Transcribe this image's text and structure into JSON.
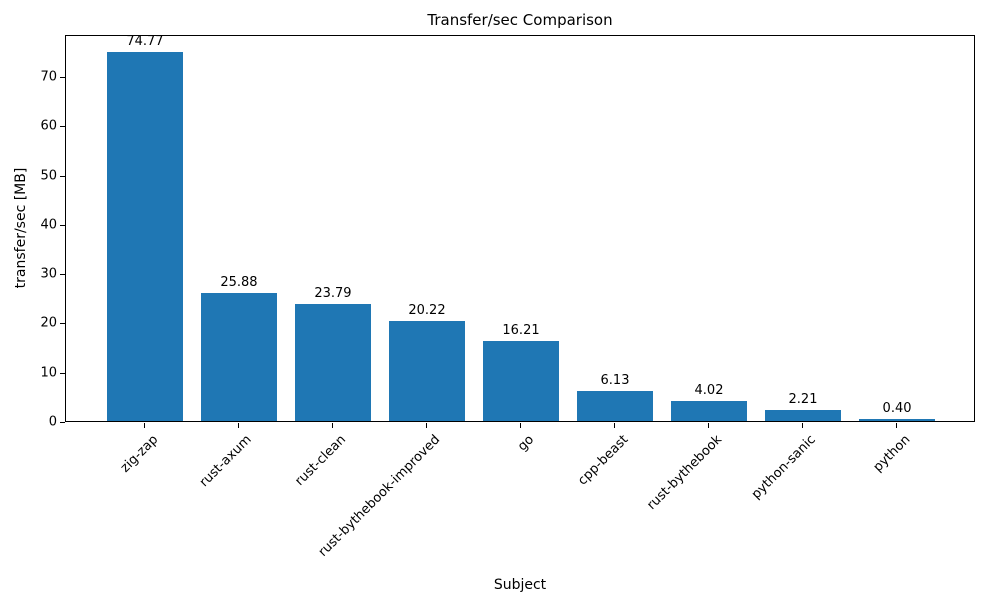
{
  "chart_data": {
    "type": "bar",
    "title": "Transfer/sec Comparison",
    "xlabel": "Subject",
    "ylabel": "transfer/sec [MB]",
    "categories": [
      "zig-zap",
      "rust-axum",
      "rust-clean",
      "rust-bythebook-improved",
      "go",
      "cpp-beast",
      "rust-bythebook",
      "python-sanic",
      "python"
    ],
    "values": [
      74.77,
      25.88,
      23.79,
      20.22,
      16.21,
      6.13,
      4.02,
      2.21,
      0.4
    ],
    "value_labels": [
      "74.77",
      "25.88",
      "23.79",
      "20.22",
      "16.21",
      "6.13",
      "4.02",
      "2.21",
      "0.40"
    ],
    "ylim": [
      0,
      78.5
    ],
    "yticks": [
      0,
      10,
      20,
      30,
      40,
      50,
      60,
      70
    ],
    "bar_color": "#1f77b4",
    "grid": false,
    "legend": "none"
  }
}
